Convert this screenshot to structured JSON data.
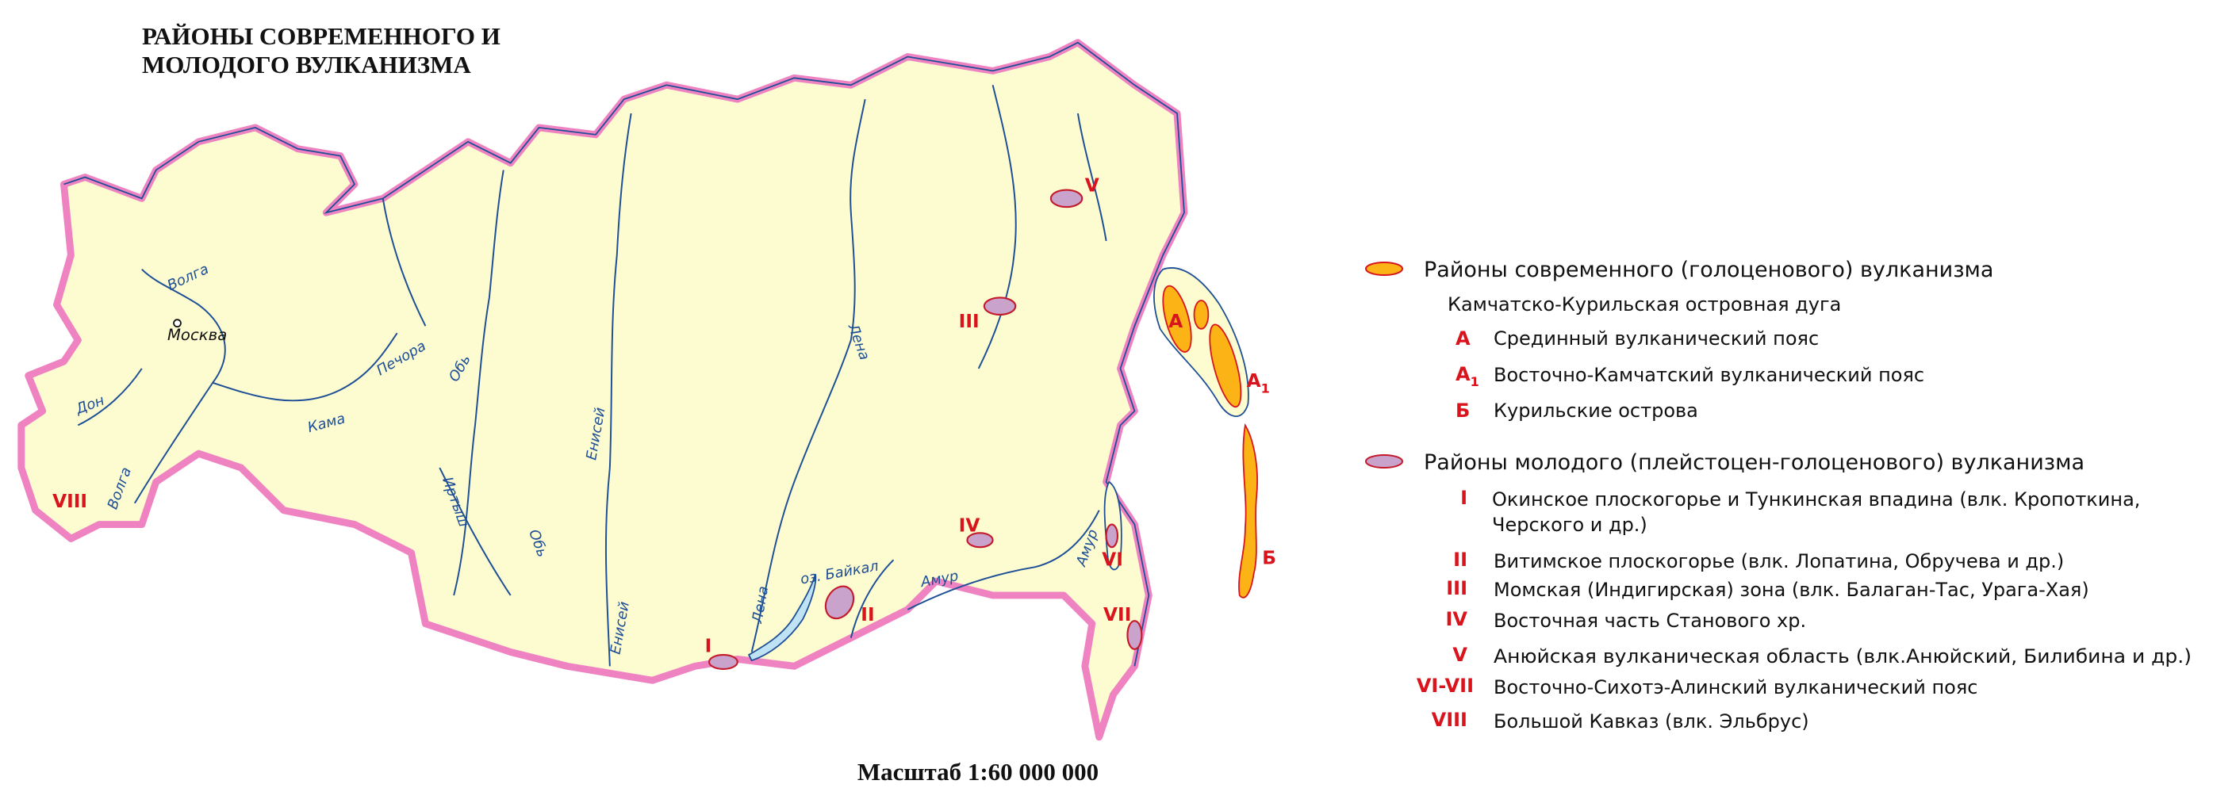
{
  "title": [
    "РАЙОНЫ СОВРЕМЕННОГО И",
    "МОЛОДОГО ВУЛКАНИЗМА"
  ],
  "map": {
    "city": "Москва",
    "lake": "оз. Байкал",
    "rivers": [
      "Волга",
      "Печора",
      "Кама",
      "Дон",
      "Волга",
      "Обь",
      "Иртыш",
      "Обь",
      "Енисей",
      "Енисей",
      "Лена",
      "Лена",
      "Амур",
      "Амур"
    ],
    "regions": [
      "V",
      "III",
      "А",
      "IV",
      "II",
      "I",
      "VI",
      "VII",
      "VIII",
      "Б"
    ],
    "region_a1": {
      "letter": "А",
      "sub": "1"
    }
  },
  "legend": {
    "modern": {
      "title": "Районы современного (голоценового) вулканизма",
      "arc": "Камчатско-Курильская островная дуга",
      "items": [
        {
          "code": "А",
          "text": "Срединный вулканический пояс"
        },
        {
          "code": {
            "letter": "А",
            "sub": "1"
          },
          "text": "Восточно-Камчатский вулканический пояс"
        },
        {
          "code": "Б",
          "text": "Курильские острова"
        }
      ]
    },
    "young": {
      "title": "Районы молодого (плейстоцен-голоценового) вулканизма",
      "items": [
        {
          "code": "I",
          "text": [
            "Окинское плоскогорье и Тункинская впадина (влк. Кропоткина,",
            "Черского и др.)"
          ]
        },
        {
          "code": "II",
          "text": "Витимское плоскогорье (влк. Лопатина, Обручева и др.)"
        },
        {
          "code": "III",
          "text": "Момская (Индигирская) зона (влк. Балаган-Тас, Урага-Хая)"
        },
        {
          "code": "IV",
          "text": "Восточная часть Станового хр."
        },
        {
          "code": "V",
          "text": "Анюйская вулканическая область (влк.Анюйский, Билибина и др.)"
        },
        {
          "code": "VI-VII",
          "text": "Восточно-Сихотэ-Алинский вулканический пояс"
        },
        {
          "code": "VIII",
          "text": "Большой Кавказ (влк. Эльбрус)"
        }
      ]
    }
  },
  "scale": "Масштаб 1:60 000 000"
}
